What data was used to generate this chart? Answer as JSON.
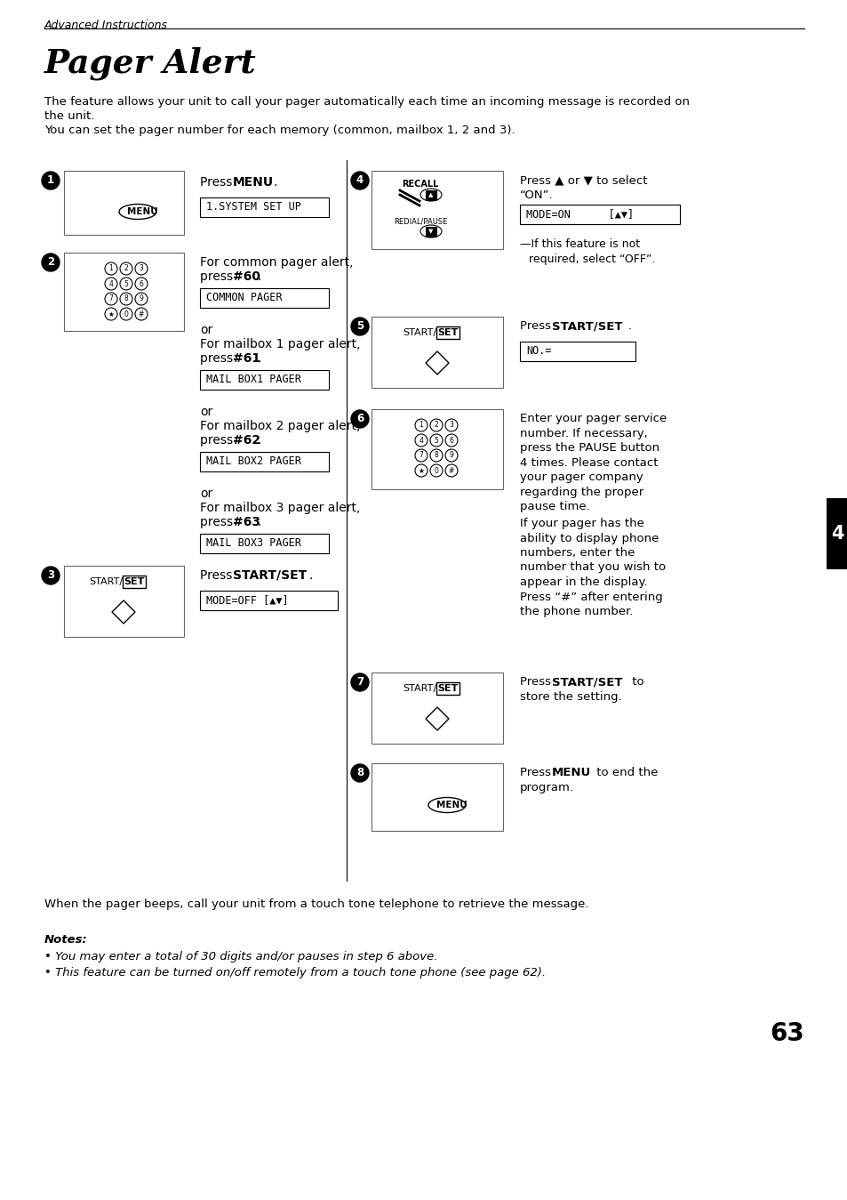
{
  "page_title": "Pager Alert",
  "header_text": "Advanced Instructions",
  "intro_line1": "The feature allows your unit to call your pager automatically each time an incoming message is recorded on",
  "intro_line2": "the unit.",
  "intro_line3": "You can set the pager number for each memory (common, mailbox 1, 2 and 3).",
  "footer_text": "When the pager beeps, call your unit from a touch tone telephone to retrieve the message.",
  "notes_title": "Notes:",
  "note1": "You may enter a total of 30 digits and/or pauses in step 6 above.",
  "note2": "This feature can be turned on/off remotely from a touch tone phone (see page 62).",
  "page_number": "63",
  "bg_color": "#ffffff",
  "text_color": "#000000"
}
